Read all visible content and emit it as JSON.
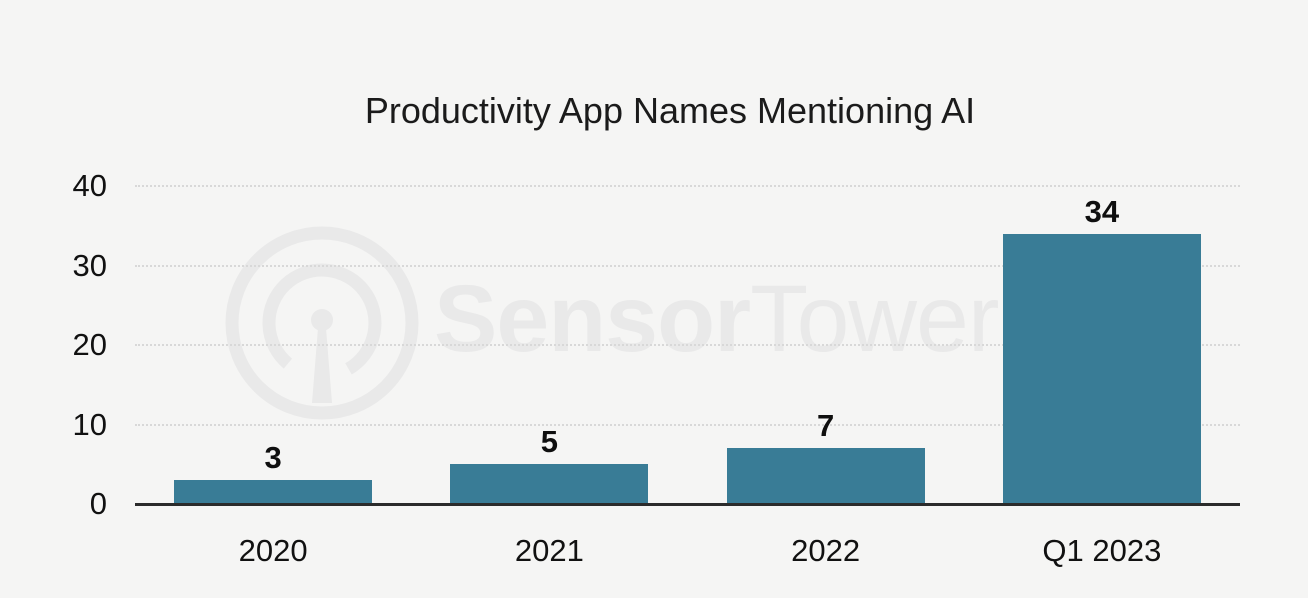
{
  "chart_data": {
    "type": "bar",
    "title": "Productivity App Names Mentioning AI",
    "categories": [
      "2020",
      "2021",
      "2022",
      "Q1 2023"
    ],
    "values": [
      3,
      5,
      7,
      34
    ],
    "value_labels": [
      "3",
      "5",
      "7",
      "34"
    ],
    "xlabel": "",
    "ylabel": "",
    "ylim": [
      0,
      40
    ],
    "yticks": [
      0,
      10,
      20,
      30,
      40
    ],
    "grid": "horizontal-dotted",
    "legend": "none",
    "bar_color": "#397c96"
  },
  "watermark": {
    "brand_bold": "Sensor",
    "brand_light": "Tower",
    "icon": "radio-tower-icon",
    "color": "#e9e9e9"
  },
  "colors": {
    "background": "#f5f5f4",
    "axis": "#2b2b2b",
    "gridline": "#d8d8d8",
    "text": "#111111",
    "bar": "#397c96",
    "watermark": "#e9e9e9"
  }
}
